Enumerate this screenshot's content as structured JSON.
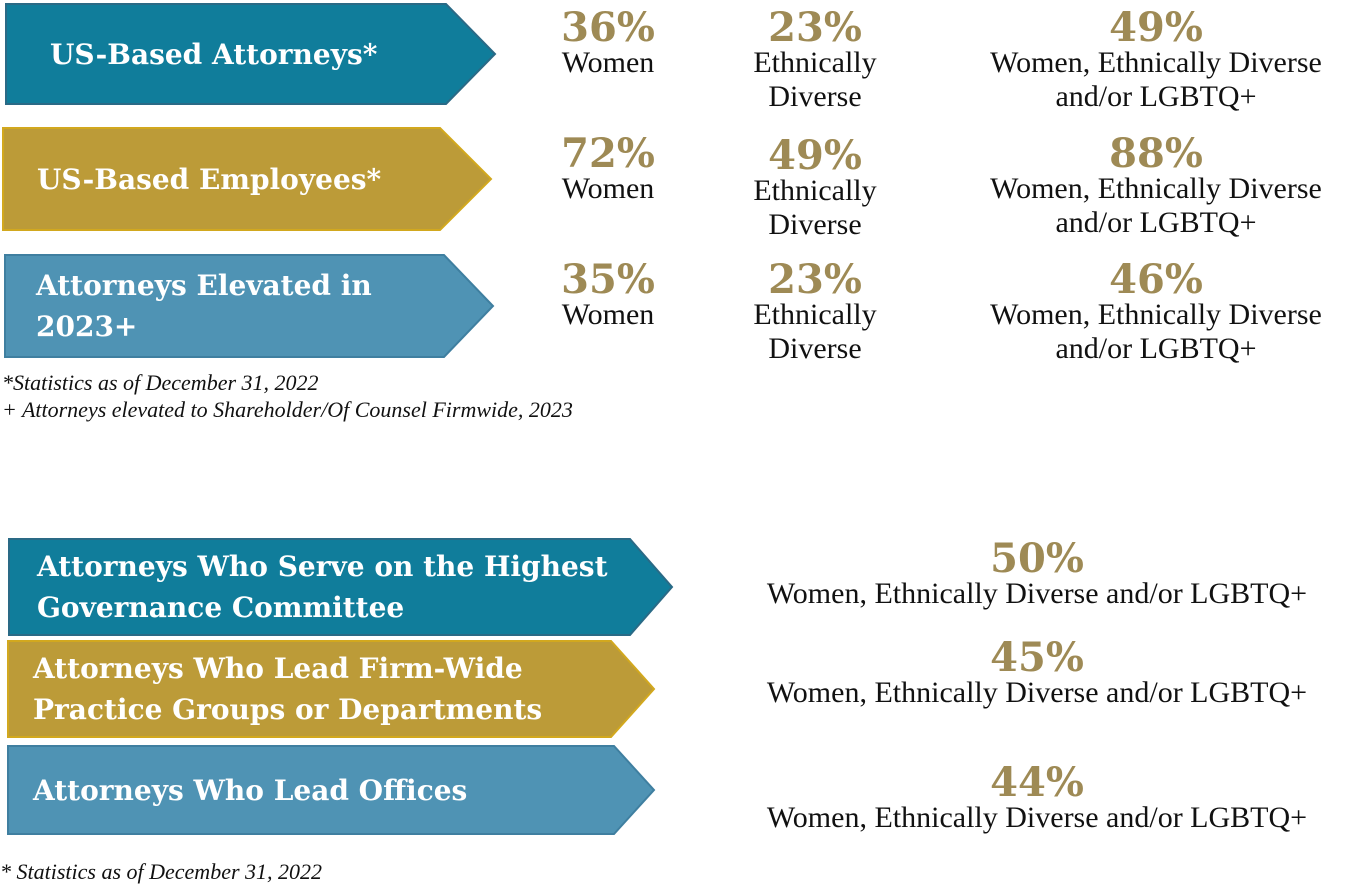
{
  "colors": {
    "teal": "#107d9b",
    "gold": "#bc9b38",
    "steel": "#4f93b4",
    "stat": "#9e8a55"
  },
  "top": {
    "rows": [
      {
        "label": "US-Based Attorneys*",
        "women": {
          "pct": "36%",
          "desc": "Women"
        },
        "ethnic": {
          "pct": "23%",
          "desc1": "Ethnically",
          "desc2": "Diverse"
        },
        "combined": {
          "pct": "49%",
          "desc1": "Women, Ethnically Diverse",
          "desc2": "and/or LGBTQ+"
        }
      },
      {
        "label": "US-Based Employees*",
        "women": {
          "pct": "72%",
          "desc": "Women"
        },
        "ethnic": {
          "pct": "49%",
          "desc1": "Ethnically",
          "desc2": "Diverse"
        },
        "combined": {
          "pct": "88%",
          "desc1": "Women, Ethnically Diverse",
          "desc2": "and/or LGBTQ+"
        }
      },
      {
        "label_line1": "Attorneys Elevated in",
        "label_line2": "2023+",
        "women": {
          "pct": "35%",
          "desc": "Women"
        },
        "ethnic": {
          "pct": "23%",
          "desc1": "Ethnically",
          "desc2": "Diverse"
        },
        "combined": {
          "pct": "46%",
          "desc1": "Women, Ethnically Diverse",
          "desc2": "and/or LGBTQ+"
        }
      }
    ],
    "note1": "*Statistics as of December 31, 2022",
    "note2": "+ Attorneys elevated to Shareholder/Of Counsel Firmwide, 2023"
  },
  "bottom": {
    "rows": [
      {
        "label_line1": "Attorneys Who Serve on the Highest",
        "label_line2": "Governance Committee",
        "pct": "50%",
        "desc": "Women, Ethnically Diverse and/or LGBTQ+"
      },
      {
        "label_line1": "Attorneys Who Lead Firm-Wide",
        "label_line2": "Practice Groups or Departments",
        "pct": "45%",
        "desc": "Women, Ethnically Diverse and/or LGBTQ+"
      },
      {
        "label": "Attorneys Who Lead Offices",
        "pct": "44%",
        "desc": "Women, Ethnically Diverse and/or LGBTQ+"
      }
    ],
    "note": "* Statistics as of December 31, 2022"
  }
}
